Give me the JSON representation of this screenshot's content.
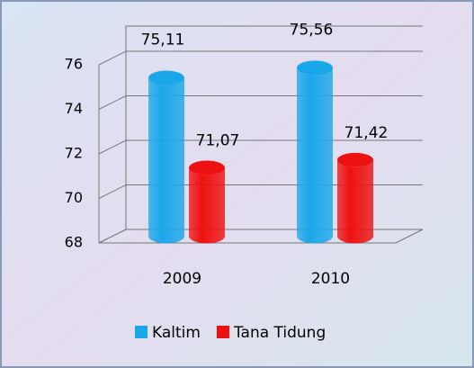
{
  "chart_data": {
    "type": "bar3d",
    "categories": [
      "2009",
      "2010"
    ],
    "series": [
      {
        "name": "Kaltim",
        "color": "#1aa7ea",
        "values": [
          75.11,
          75.56
        ],
        "value_labels": [
          "75,11",
          "75,56"
        ]
      },
      {
        "name": "Tana Tidung",
        "color": "#ee1111",
        "values": [
          71.07,
          71.42
        ],
        "value_labels": [
          "71,07",
          "71,42"
        ]
      }
    ],
    "ylim": [
      68,
      76
    ],
    "yticks": [
      68,
      70,
      72,
      74,
      76
    ],
    "grid": true,
    "legend": "bottom"
  }
}
